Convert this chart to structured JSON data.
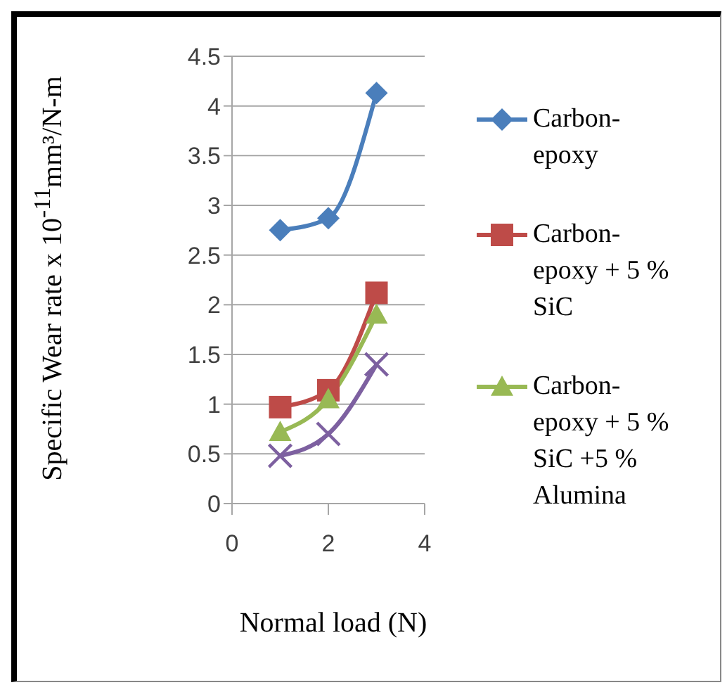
{
  "chart_data": {
    "type": "line",
    "xlabel": "Normal load (N)",
    "ylabel": "Specific Wear rate x 10$^{-11}$mm³/N-m",
    "x": [
      1,
      2,
      3
    ],
    "series": [
      {
        "name": "Carbon-epoxy",
        "color": "#4a7ebb",
        "marker": "diamond",
        "values": [
          2.75,
          2.87,
          4.13
        ]
      },
      {
        "name": "Carbon-epoxy + 5 % SiC",
        "color": "#be4b48",
        "marker": "square",
        "values": [
          0.97,
          1.14,
          2.12
        ]
      },
      {
        "name": "Carbon-epoxy + 5 % SiC +5 % Alumina",
        "color": "#98b954",
        "marker": "triangle",
        "values": [
          0.72,
          1.05,
          1.9
        ]
      },
      {
        "color": "#7d60a0",
        "marker": "cross",
        "values": [
          0.48,
          0.7,
          1.4
        ]
      }
    ],
    "xlim": [
      0,
      4
    ],
    "xticks": [
      0,
      2,
      4
    ],
    "ylim": [
      0,
      4.5
    ],
    "yticks": [
      0,
      0.5,
      1,
      1.5,
      2,
      2.5,
      3,
      3.5,
      4,
      4.5
    ],
    "grid": "y",
    "legend": "right"
  }
}
